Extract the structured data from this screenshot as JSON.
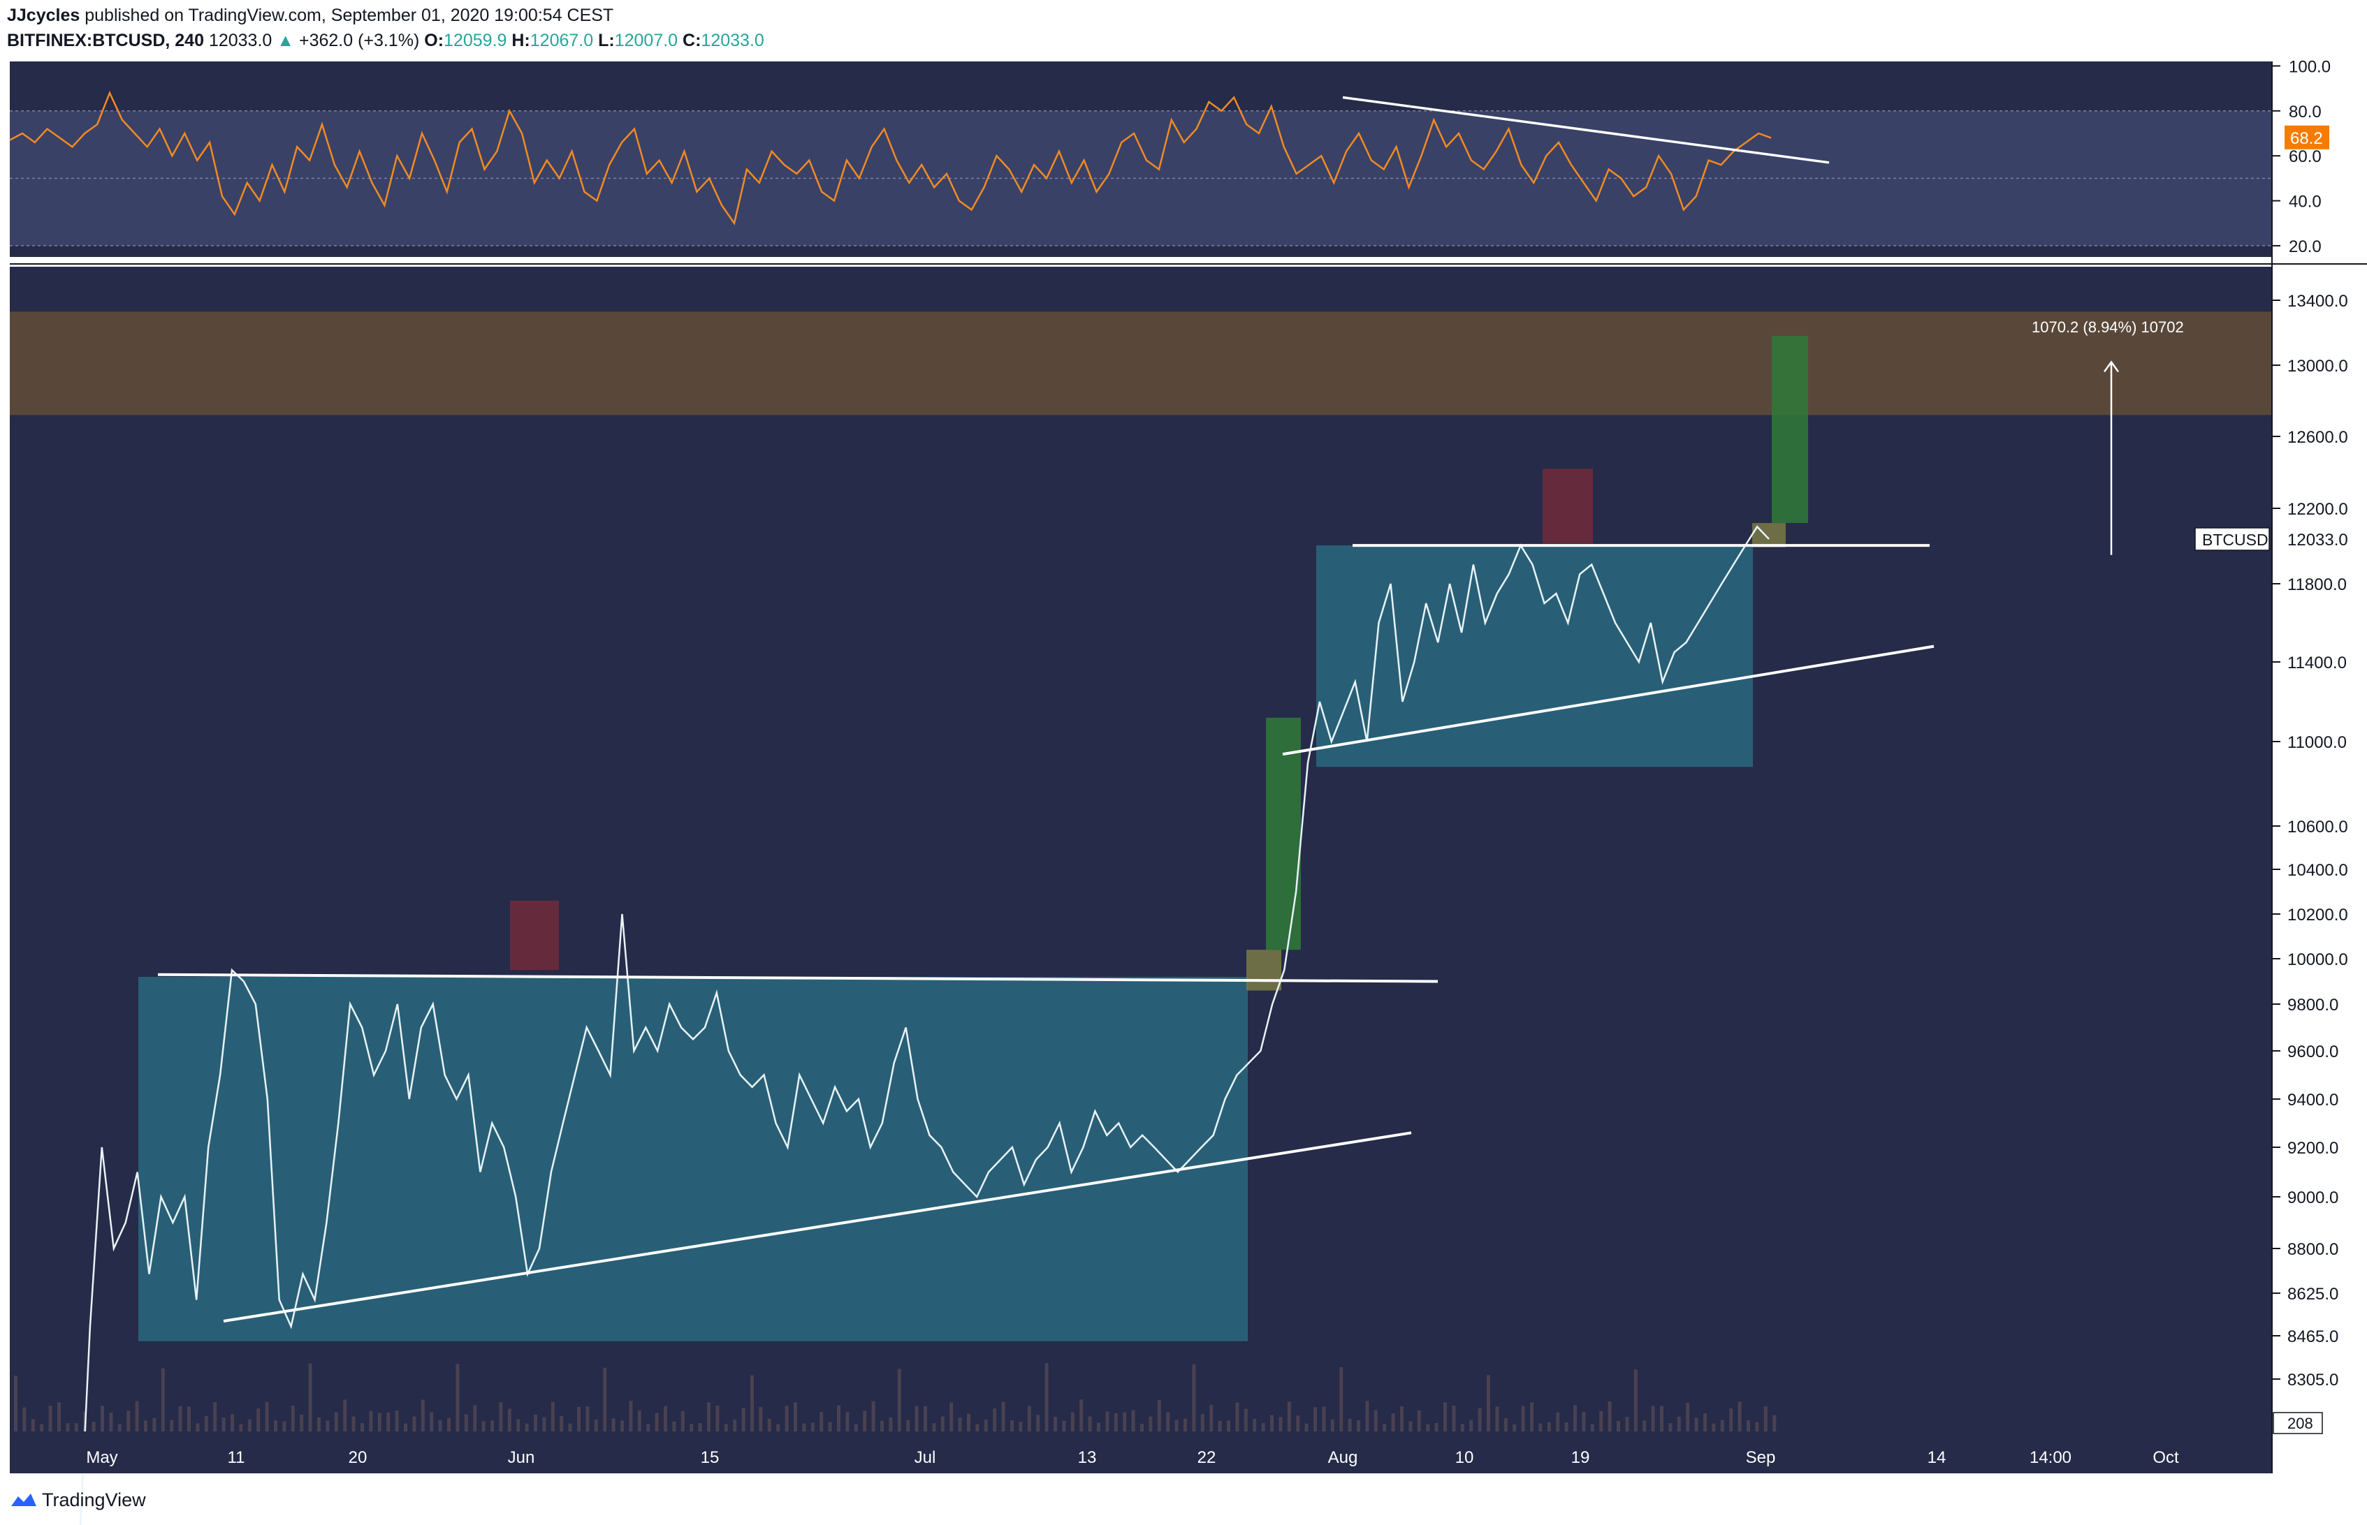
{
  "header": {
    "author": "JJcycles",
    "published_text": "published on TradingView.com, September 01, 2020 19:00:54 CEST",
    "symbol": "BITFINEX:BTCUSD, 240",
    "last": "12033.0",
    "change": "+362.0 (+3.1%)",
    "open_label": "O:",
    "open": "12059.9",
    "high_label": "H:",
    "high": "12067.0",
    "low_label": "L:",
    "low": "12007.0",
    "close_label": "C:",
    "close": "12033.0"
  },
  "footer": {
    "brand": "TradingView"
  },
  "colors": {
    "background": "#252b48",
    "price_line": "#e8f4f8",
    "rsi_line": "#f08a24",
    "consolidation_box": "#2a6d82",
    "resistance_zone": "#5c4a3a",
    "breakout_box": "#2f7a3a",
    "rejection_box": "#6e2a3c",
    "breakout_candle_box": "#7a7a45",
    "trendline": "#ffffff",
    "rsi_badge": "#f57c00"
  },
  "chart_data": [
    {
      "type": "line",
      "name": "RSI panel",
      "ylim": [
        15,
        102
      ],
      "y_ticks": [
        "100.0",
        "80.0",
        "60.0",
        "40.0",
        "20.0"
      ],
      "y_tick_values": [
        100,
        80,
        60,
        40,
        20
      ],
      "band": [
        20,
        80
      ],
      "midline": 50,
      "last_value_label": "68.2",
      "last_value": 68.2,
      "series": [
        {
          "values": [
            67,
            70,
            66,
            72,
            68,
            64,
            70,
            74,
            88,
            76,
            70,
            64,
            72,
            60,
            70,
            58,
            66,
            42,
            34,
            48,
            40,
            56,
            44,
            64,
            58,
            74,
            56,
            46,
            62,
            48,
            38,
            60,
            50,
            70,
            58,
            44,
            66,
            72,
            54,
            62,
            80,
            70,
            48,
            58,
            50,
            62,
            44,
            40,
            56,
            66,
            72,
            52,
            58,
            48,
            62,
            44,
            50,
            38,
            30,
            54,
            48,
            62,
            56,
            52,
            58,
            44,
            40,
            58,
            50,
            64,
            72,
            58,
            48,
            56,
            46,
            52,
            40,
            36,
            46,
            60,
            54,
            44,
            56,
            50,
            62,
            48,
            58,
            44,
            52,
            66,
            70,
            58,
            54,
            76,
            66,
            72,
            84,
            80,
            86,
            74,
            70,
            82,
            64,
            52,
            56,
            60,
            48,
            62,
            70,
            58,
            54,
            64,
            46,
            60,
            76,
            64,
            70,
            58,
            54,
            62,
            72,
            56,
            48,
            60,
            66,
            56,
            48,
            40,
            54,
            50,
            42,
            46,
            60,
            52,
            36,
            42,
            58,
            56,
            62,
            66,
            70,
            68
          ]
        }
      ]
    },
    {
      "type": "line",
      "name": "BTCUSD price",
      "x_ticks": [
        "May",
        "11",
        "20",
        "Jun",
        "15",
        "Jul",
        "13",
        "22",
        "Aug",
        "10",
        "19",
        "Sep",
        "14",
        "14:00",
        "Oct"
      ],
      "y_ticks": [
        "13400.0",
        "13000.0",
        "12600.0",
        "12200.0",
        "11800.0",
        "11400.0",
        "11000.0",
        "10600.0",
        "10400.0",
        "10200.0",
        "10000.0",
        "9800.0",
        "9600.0",
        "9400.0",
        "9200.0",
        "9000.0",
        "8800.0",
        "8625.0",
        "8465.0",
        "8305.0"
      ],
      "last_price_label": "BTCUSD",
      "last_price": "12033.0",
      "volume_label": "208",
      "measure_label": "1070.2 (8.94%) 10702",
      "series": [
        {
          "values": [
            7600,
            8500,
            9200,
            8800,
            8900,
            9100,
            8700,
            9000,
            8900,
            9000,
            8600,
            9200,
            9500,
            9950,
            9900,
            9800,
            9400,
            8600,
            8500,
            8700,
            8600,
            8900,
            9300,
            9800,
            9700,
            9500,
            9600,
            9800,
            9400,
            9700,
            9800,
            9500,
            9400,
            9500,
            9100,
            9300,
            9200,
            9000,
            8700,
            8800,
            9100,
            9300,
            9500,
            9700,
            9600,
            9500,
            10200,
            9600,
            9700,
            9600,
            9800,
            9700,
            9650,
            9700,
            9850,
            9600,
            9500,
            9450,
            9500,
            9300,
            9200,
            9500,
            9400,
            9300,
            9450,
            9350,
            9400,
            9200,
            9300,
            9550,
            9700,
            9400,
            9250,
            9200,
            9100,
            9050,
            9000,
            9100,
            9150,
            9200,
            9050,
            9150,
            9200,
            9300,
            9100,
            9200,
            9350,
            9250,
            9300,
            9200,
            9250,
            9200,
            9150,
            9100,
            9150,
            9200,
            9250,
            9400,
            9500,
            9550,
            9600,
            9800,
            9950,
            10300,
            10900,
            11200,
            11000,
            11150,
            11300,
            11000,
            11600,
            11800,
            11200,
            11400,
            11700,
            11500,
            11800,
            11550,
            11900,
            11600,
            11750,
            11850,
            12000,
            11900,
            11700,
            11750,
            11600,
            11850,
            11900,
            11750,
            11600,
            11500,
            11400,
            11600,
            11300,
            11450,
            11500,
            11600,
            11700,
            11800,
            11900,
            12000,
            12100,
            12033
          ]
        }
      ]
    }
  ]
}
